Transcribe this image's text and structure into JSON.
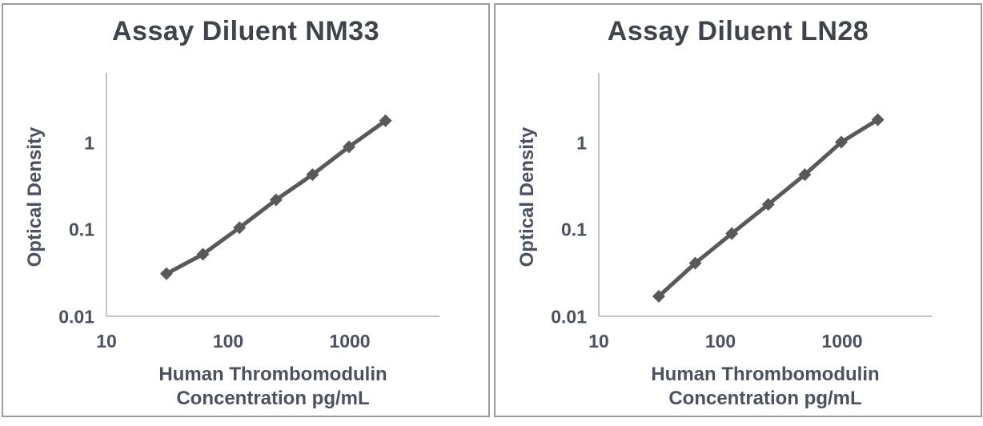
{
  "colors": {
    "background": "#ffffff",
    "panel_border": "#9c9c9c",
    "title_text": "#3f434c",
    "label_text": "#4b5161",
    "axis_line": "#c2c2c2",
    "curve": "#595959"
  },
  "chart_data": [
    {
      "type": "line",
      "title": "Assay Diluent NM33",
      "ylabel": "Optical Density",
      "xlabel": "Human Thrombomodulin Concentration pg/mL",
      "xlabel_lines": [
        "Human Thrombomodulin",
        "Concentration pg/mL"
      ],
      "xscale": "log",
      "yscale": "log",
      "x": [
        31.25,
        62.5,
        125,
        250,
        500,
        1000,
        2000
      ],
      "y": [
        0.031,
        0.052,
        0.105,
        0.22,
        0.43,
        0.9,
        1.8
      ],
      "x_tick_values": [
        10,
        100,
        1000
      ],
      "x_tick_labels": [
        "10",
        "100",
        "1000"
      ],
      "y_tick_values": [
        1,
        0.1,
        0.01
      ],
      "y_tick_labels": [
        "1",
        "0.1",
        "0.01"
      ],
      "xlim": [
        10,
        5600
      ],
      "ylim": [
        0.01,
        6.2
      ],
      "grid": false,
      "legend": null,
      "marker": "diamond",
      "line_color": "#595959"
    },
    {
      "type": "line",
      "title": "Assay Diluent LN28",
      "ylabel": "Optical Density",
      "xlabel": "Human Thrombomodulin Concentration pg/mL",
      "xlabel_lines": [
        "Human Thrombomodulin",
        "Concentration pg/mL"
      ],
      "xscale": "log",
      "yscale": "log",
      "x": [
        31.25,
        62.5,
        125,
        250,
        500,
        1000,
        2000
      ],
      "y": [
        0.017,
        0.041,
        0.09,
        0.195,
        0.43,
        1.02,
        1.85
      ],
      "x_tick_values": [
        10,
        100,
        1000
      ],
      "x_tick_labels": [
        "10",
        "100",
        "1000"
      ],
      "y_tick_values": [
        1,
        0.1,
        0.01
      ],
      "y_tick_labels": [
        "1",
        "0.1",
        "0.01"
      ],
      "xlim": [
        10,
        5600
      ],
      "ylim": [
        0.01,
        6.2
      ],
      "grid": false,
      "legend": null,
      "marker": "diamond",
      "line_color": "#595959"
    }
  ]
}
